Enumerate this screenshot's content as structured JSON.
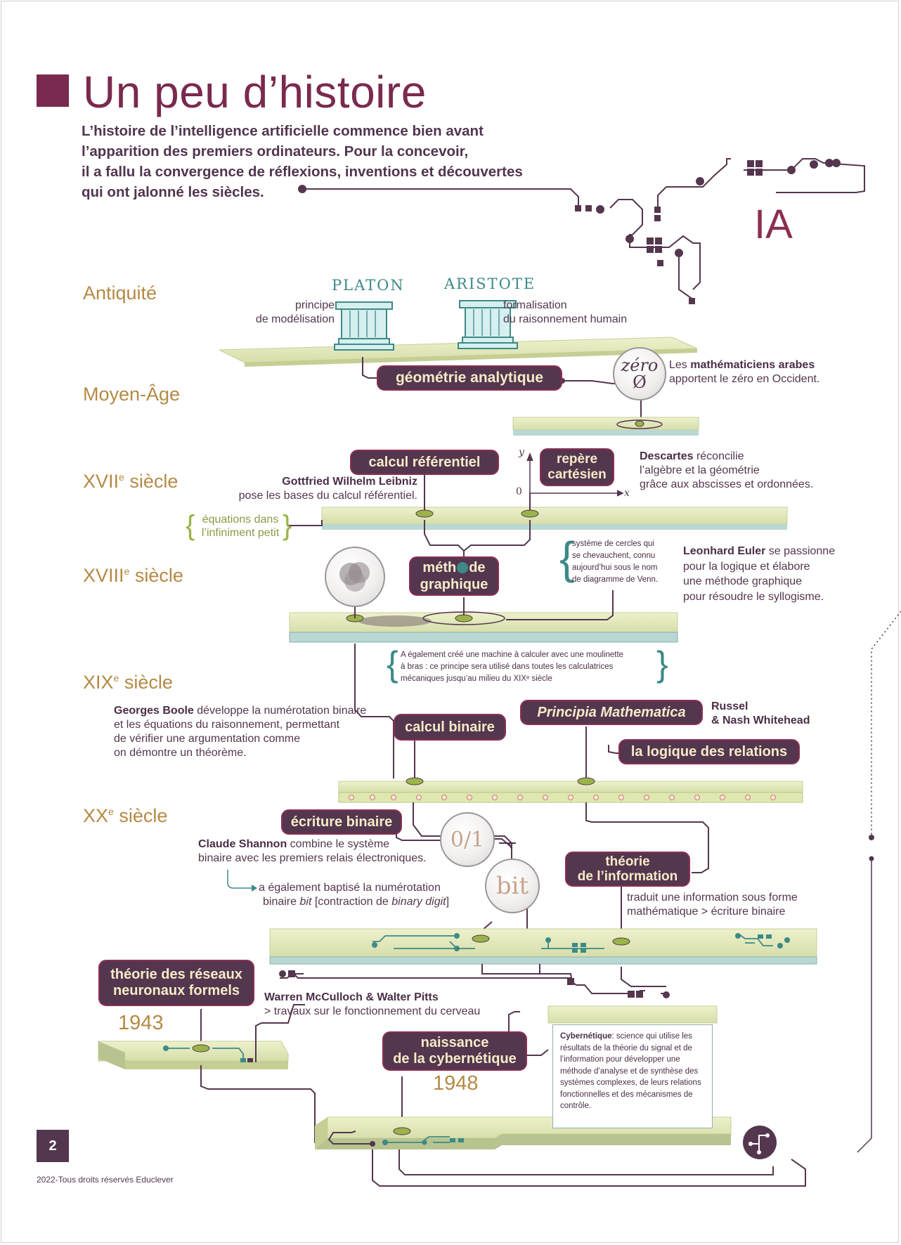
{
  "header": {
    "title": "Un peu d’histoire",
    "intro_lines": [
      "L’histoire de l’intelligence artificielle commence bien avant",
      "l’apparition des premiers ordinateurs. Pour la concevoir,",
      "il a fallu la convergence de réflexions, inventions et découvertes",
      "qui ont jalonné les siècles."
    ],
    "ia_label": "IA"
  },
  "periods": {
    "antiquite": "Antiquité",
    "moyen_age": "Moyen-Âge",
    "xvii_base": "XVII",
    "xviii_base": "XVIII",
    "xix_base": "XIX",
    "xx_base": "XX",
    "sup": "e",
    "siecle": " siècle"
  },
  "antiquity": {
    "platon": "PLATON",
    "aristote": "ARISTOTE",
    "platon_desc": [
      "principe",
      "de modélisation"
    ],
    "aristote_desc": [
      "formalisation",
      "du raisonnement humain"
    ]
  },
  "middle_ages": {
    "geometrie_pill": "géométrie analytique",
    "zero_symbol": "zéro",
    "zero_glyph": "Ø",
    "arab_pre": "Les ",
    "arab_bold": "mathématiciens arabes",
    "arab_line2": "apportent le zéro en Occident."
  },
  "xvii": {
    "calcul_pill": "calcul référentiel",
    "repere_pill": [
      "repère",
      "cartésien"
    ],
    "axis_y": "y",
    "axis_x": "x",
    "axis_zero": "0",
    "leibniz_name": "Gottfried Wilhelm Leibniz",
    "leibniz_desc": "pose les bases du calcul référentiel.",
    "descartes_name": "Descartes",
    "descartes_desc": [
      " réconcilie",
      "l’algèbre et la géométrie",
      "grâce aux abscisses et ordonnées."
    ],
    "infinite": [
      "équations dans",
      "l’infiniment petit"
    ]
  },
  "xviii": {
    "methode_pill": [
      "méth",
      "de",
      "graphique"
    ],
    "venn_note": [
      "système de cercles qui",
      "se chevauchent, connu",
      "aujourd’hui sous le nom",
      "de diagramme de Venn."
    ],
    "euler_name": "Leonhard Euler",
    "euler_desc": [
      " se passionne",
      "pour la logique et élabore",
      "une méthode graphique",
      "pour résoudre le syllogisme."
    ],
    "machine_note": [
      "A également créé une machine à calculer avec une moulinette",
      "à bras : ce principe sera utilisé dans toutes les calculatrices",
      "mécaniques jusqu’au milieu du XIXᵉ siècle"
    ]
  },
  "xix": {
    "boole_name": "Georges Boole",
    "boole_desc": [
      " développe la numérotation binaire",
      " et les équations du raisonnement, permettant",
      "de vérifier une argumentation comme",
      "on démontre un théorème."
    ],
    "calcul_binaire_pill": "calcul binaire",
    "principia_pill": "Principia Mathematica",
    "russel": [
      "Russel",
      "& Nash Whitehead"
    ],
    "logique_pill": "la logique des relations"
  },
  "xx": {
    "ecriture_pill": "écriture binaire",
    "zero_one": "0/1",
    "bit": "bit",
    "shannon_name": "Claude Shannon",
    "shannon_desc": [
      " combine le système",
      "binaire avec les premiers relais électroniques."
    ],
    "baptise_1": "a également baptisé la numérotation",
    "baptise_2a": "binaire ",
    "baptise_2b": "bit",
    "baptise_2c": " [contraction de ",
    "baptise_2d": "binary digit",
    "baptise_2e": "]",
    "theorie_info_pill": [
      "théorie",
      "de l’information"
    ],
    "traduit": [
      "traduit une information sous forme",
      "mathématique > écriture binaire"
    ],
    "reseaux_pill": [
      "théorie des réseaux",
      "neuronaux formels"
    ],
    "year_1943": "1943",
    "mcculloch": "Warren McCulloch & Walter Pitts",
    "mcculloch_desc": "> travaux sur le fonctionnement du cerveau",
    "cyber_pill": [
      "naissance",
      "de la cybernétique"
    ],
    "year_1948": "1948",
    "cyber_term": "Cybernétique",
    "cyber_def": ": science qui utilise les résultats de la théorie du signal et de l’information pour développer une méthode d’analyse et de synthèse des systèmes complexes, de leurs relations fonctionnelles et des mécanismes de contrôle."
  },
  "footer": {
    "page_number": "2",
    "copyright": "2022-Tous droits réservés Educlever"
  },
  "colors": {
    "plum": "#54364e",
    "magenta": "#7a2a4e",
    "gold": "#b48a45",
    "teal": "#3d8a87",
    "board": "#e3e8b9"
  }
}
